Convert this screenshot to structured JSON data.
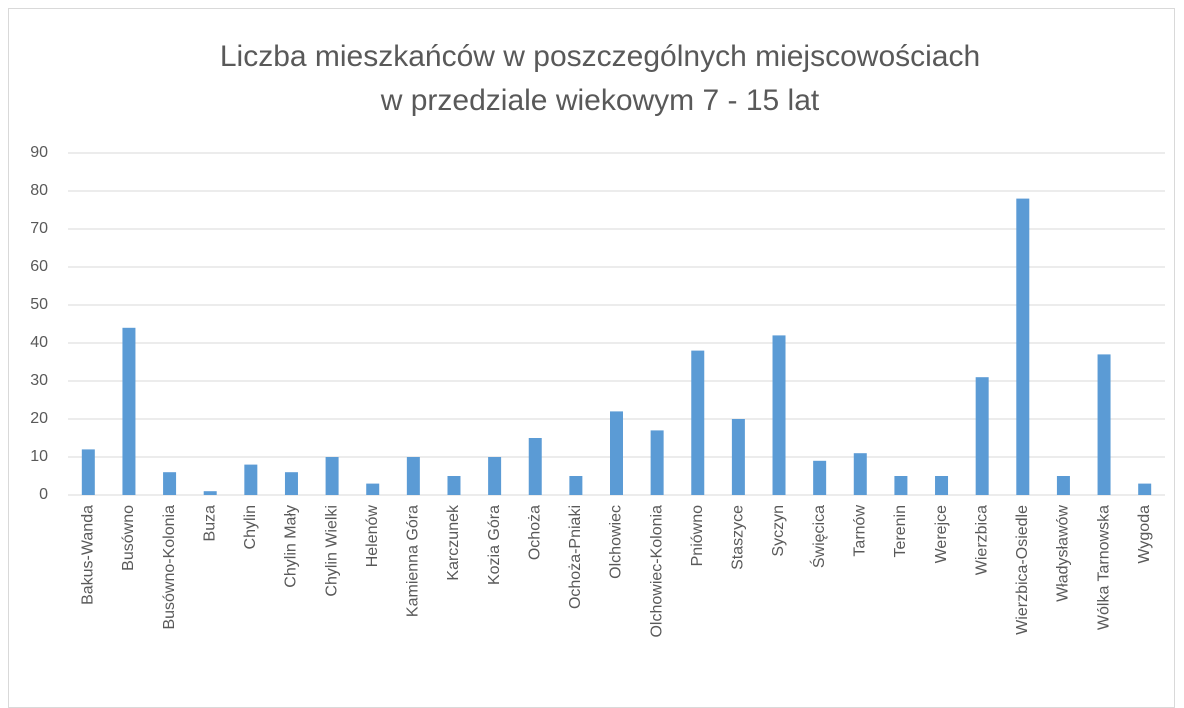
{
  "chart_data": {
    "type": "bar",
    "title": [
      "Liczba mieszkańców w poszczególnych miejscowościach",
      "w przedziale wiekowym 7 - 15 lat"
    ],
    "categories": [
      "Bakus-Wanda",
      "Busówno",
      "Busówno-Kolonia",
      "Buza",
      "Chylin",
      "Chylin Mały",
      "Chylin Wielki",
      "Helenów",
      "Kamienna Góra",
      "Karczunek",
      "Kozia Góra",
      "Ochoża",
      "Ochoża-Pniaki",
      "Olchowiec",
      "Olchowiec-Kolonia",
      "Pniówno",
      "Staszyce",
      "Syczyn",
      "Święcica",
      "Tarnów",
      "Terenin",
      "Werejce",
      "Wierzbica",
      "Wierzbica-Osiedle",
      "Władysławów",
      "Wólka Tarnowska",
      "Wygoda"
    ],
    "values": [
      12,
      44,
      6,
      1,
      8,
      6,
      10,
      3,
      10,
      5,
      10,
      15,
      5,
      22,
      17,
      38,
      20,
      42,
      9,
      11,
      5,
      5,
      31,
      78,
      5,
      37,
      3
    ],
    "color": "#5b9bd5",
    "ylim": [
      0,
      90
    ],
    "yticks": [
      0,
      10,
      20,
      30,
      40,
      50,
      60,
      70,
      80,
      90
    ],
    "grid": true
  }
}
